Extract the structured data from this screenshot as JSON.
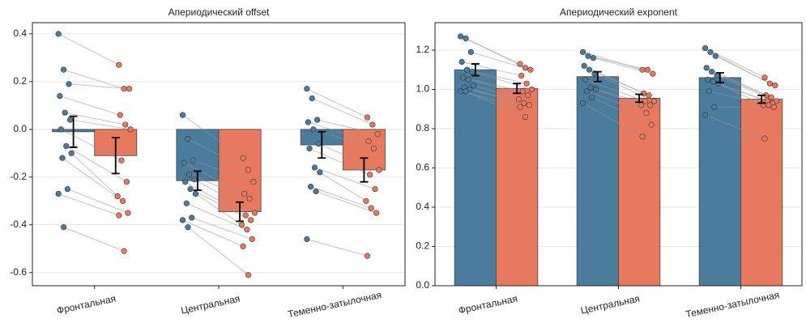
{
  "chart_data": [
    {
      "type": "bar",
      "title": "Апериодический offset",
      "categories": [
        "Фронтальная",
        "Центральная",
        "Теменно-затылочная"
      ],
      "ylim": [
        -0.655,
        0.447
      ],
      "yticks": [
        -0.6,
        -0.4,
        -0.2,
        {
          "value": 0,
          "label": "0.0"
        },
        0.2,
        0.4
      ],
      "grid": true,
      "series": [
        {
          "color": "#4a7c9e",
          "values": [
            -0.01,
            -0.215,
            -0.065
          ],
          "errors": [
            0.065,
            0.04,
            0.055
          ],
          "points": [
            [
              0.4,
              0.25,
              0.19,
              0.14,
              0.07,
              0.04,
              0.0,
              -0.07,
              -0.1,
              -0.12,
              -0.25,
              -0.27,
              -0.41
            ],
            [
              0.06,
              -0.04,
              -0.13,
              -0.14,
              -0.19,
              -0.21,
              -0.22,
              -0.25,
              -0.27,
              -0.31,
              -0.37,
              -0.38,
              -0.41
            ],
            [
              0.17,
              0.13,
              0.04,
              0.03,
              0.0,
              -0.06,
              -0.08,
              -0.16,
              -0.18,
              -0.24,
              -0.26,
              -0.46
            ]
          ]
        },
        {
          "color": "#e8795e",
          "values": [
            -0.11,
            -0.345,
            -0.17
          ],
          "errors": [
            0.075,
            0.04,
            0.05
          ],
          "points": [
            [
              0.27,
              0.17,
              0.17,
              0.06,
              0.02,
              0.0,
              -0.13,
              -0.22,
              -0.28,
              -0.3,
              -0.35,
              -0.36,
              -0.51
            ],
            [
              -0.12,
              -0.17,
              -0.22,
              -0.27,
              -0.29,
              -0.35,
              -0.36,
              -0.38,
              -0.4,
              -0.42,
              -0.46,
              -0.49,
              -0.61
            ],
            [
              0.05,
              0.02,
              -0.02,
              -0.05,
              -0.08,
              -0.17,
              -0.19,
              -0.25,
              -0.3,
              -0.33,
              -0.35,
              -0.53
            ]
          ]
        }
      ]
    },
    {
      "type": "bar",
      "title": "Апериодический exponent",
      "categories": [
        "Фронтальная",
        "Центральная",
        "Теменно-затылочная"
      ],
      "ylim": [
        0,
        1.34
      ],
      "yticks": [
        {
          "value": 0,
          "label": "0.0"
        },
        0.2,
        0.4,
        0.6,
        0.8,
        {
          "value": 1,
          "label": "1.0"
        },
        1.2
      ],
      "grid": true,
      "series": [
        {
          "color": "#4a7c9e",
          "values": [
            1.1,
            1.065,
            1.06
          ],
          "errors": [
            0.03,
            0.025,
            0.025
          ],
          "points": [
            [
              1.27,
              1.26,
              1.19,
              1.14,
              1.1,
              1.09,
              1.06,
              1.05,
              1.02,
              1.01,
              1.0,
              0.99,
              0.99
            ],
            [
              1.19,
              1.17,
              1.16,
              1.12,
              1.1,
              1.08,
              1.05,
              1.01,
              1.0,
              0.99,
              0.96,
              0.93
            ],
            [
              1.21,
              1.19,
              1.17,
              1.11,
              1.09,
              1.07,
              1.05,
              1.04,
              1.03,
              0.99,
              0.91,
              0.87
            ]
          ]
        },
        {
          "color": "#e8795e",
          "values": [
            1.005,
            0.955,
            0.95
          ],
          "errors": [
            0.025,
            0.02,
            0.02
          ],
          "points": [
            [
              1.13,
              1.11,
              1.1,
              1.07,
              1.03,
              1.0,
              0.99,
              0.97,
              0.95,
              0.93,
              0.92,
              0.91,
              0.86
            ],
            [
              1.1,
              1.1,
              1.08,
              0.98,
              0.97,
              0.94,
              0.94,
              0.92,
              0.92,
              0.88,
              0.82,
              0.76
            ],
            [
              1.06,
              1.03,
              1.02,
              0.97,
              0.96,
              0.94,
              0.94,
              0.93,
              0.92,
              0.92,
              0.91,
              0.75
            ]
          ]
        }
      ]
    }
  ]
}
